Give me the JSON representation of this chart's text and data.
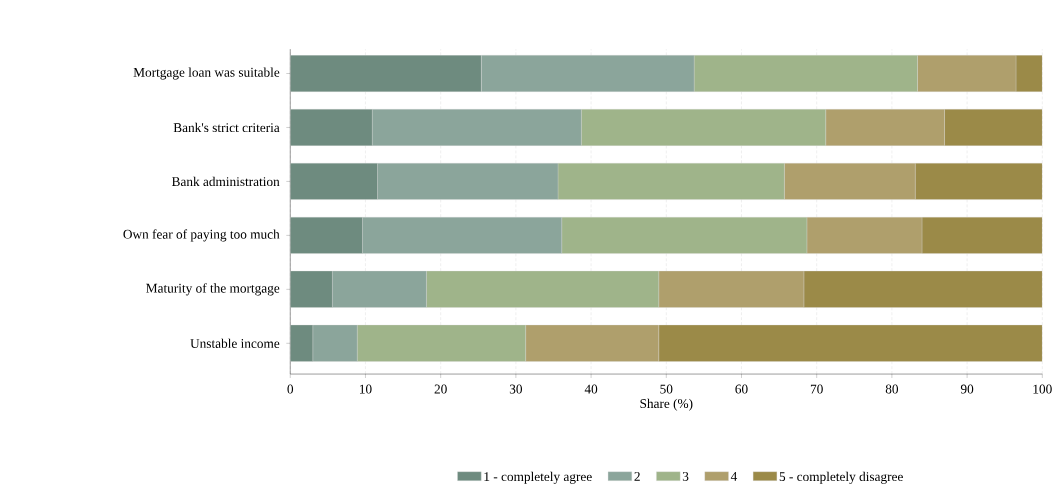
{
  "chart_data": {
    "type": "bar",
    "orientation": "horizontal",
    "stacked": true,
    "xlabel": "Share (%)",
    "categories": [
      "Mortgage loan was suitable",
      "Bank's strict criteria",
      "Bank administration",
      "Own fear of paying too much",
      "Maturity of the mortgage",
      "Unstable income"
    ],
    "series": [
      {
        "name": "1 - completely agree",
        "color": "#6e8b7f",
        "values": [
          25.4,
          10.9,
          11.6,
          9.6,
          5.6,
          3.0
        ]
      },
      {
        "name": "2",
        "color": "#8ba59b",
        "values": [
          28.3,
          27.8,
          24.0,
          26.5,
          12.5,
          5.9
        ]
      },
      {
        "name": "3",
        "color": "#9fb48a",
        "values": [
          29.7,
          32.5,
          30.1,
          32.6,
          30.9,
          22.4
        ]
      },
      {
        "name": "4",
        "color": "#af9f6c",
        "values": [
          13.1,
          15.8,
          17.4,
          15.3,
          19.3,
          17.7
        ]
      },
      {
        "name": "5 - completely disagree",
        "color": "#9b8a48",
        "values": [
          3.5,
          13.0,
          16.9,
          16.0,
          31.7,
          51.0
        ]
      }
    ],
    "xlim": [
      0,
      100
    ],
    "xticks": [
      0,
      10,
      20,
      30,
      40,
      50,
      60,
      70,
      80,
      90,
      100
    ],
    "grid": "x",
    "legend": "bottom"
  }
}
